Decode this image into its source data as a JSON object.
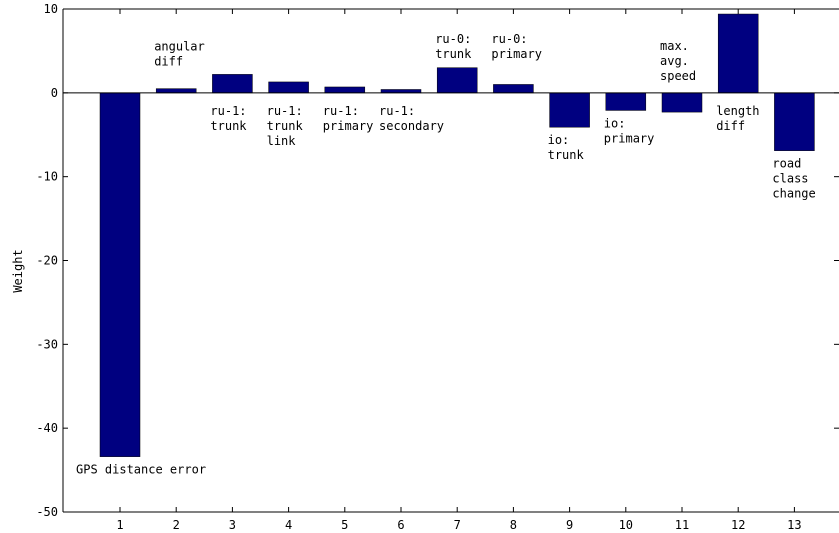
{
  "chart_data": {
    "type": "bar",
    "ylabel": "Weight",
    "xlabel": "",
    "ylim": [
      -50,
      10
    ],
    "yticks": [
      10,
      0,
      -10,
      -20,
      -30,
      -40,
      -50
    ],
    "categories": [
      "1",
      "2",
      "3",
      "4",
      "5",
      "6",
      "7",
      "8",
      "9",
      "10",
      "11",
      "12",
      "13"
    ],
    "values": [
      -43.4,
      0.5,
      2.2,
      1.3,
      0.7,
      0.4,
      3.0,
      1.0,
      -4.1,
      -2.1,
      -2.3,
      9.4,
      -6.9
    ],
    "bar_labels": [
      [
        "GPS distance error"
      ],
      [
        "angular",
        "diff"
      ],
      [
        "ru-1:",
        "trunk"
      ],
      [
        "ru-1:",
        "trunk",
        "link"
      ],
      [
        "ru-1:",
        "primary"
      ],
      [
        "ru-1:",
        "secondary"
      ],
      [
        "ru-0:",
        "trunk"
      ],
      [
        "ru-0:",
        "primary"
      ],
      [
        "io:",
        "trunk"
      ],
      [
        "io:",
        "primary"
      ],
      [
        "max.",
        "avg.",
        "speed"
      ],
      [
        "length",
        "diff"
      ],
      [
        "road",
        "class",
        "change"
      ]
    ],
    "bar_color": "#000080",
    "grid": false
  }
}
